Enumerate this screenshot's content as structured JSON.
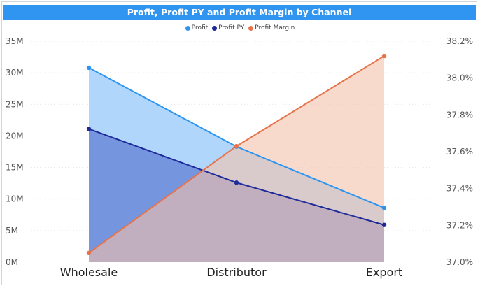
{
  "chart_data": {
    "type": "area",
    "title": "Profit, Profit PY and Profit Margin by Channel",
    "categories": [
      "Wholesale",
      "Distributor",
      "Export"
    ],
    "series": [
      {
        "name": "Profit",
        "axis": "left",
        "values": [
          30.8,
          18.3,
          8.6
        ],
        "color": "#2b95f0",
        "fill": "#a8d1fb"
      },
      {
        "name": "Profit PY",
        "axis": "left",
        "values": [
          21.1,
          12.6,
          5.9
        ],
        "color": "#1e2a9a",
        "fill": "#6b8ad9"
      },
      {
        "name": "Profit Margin",
        "axis": "right",
        "values": [
          37.05,
          37.63,
          38.12
        ],
        "color": "#e6734a",
        "fill": "#f4c1ab"
      }
    ],
    "left_axis": {
      "min": 0,
      "max": 35,
      "ticks": [
        "0M",
        "5M",
        "10M",
        "15M",
        "20M",
        "25M",
        "30M",
        "35M"
      ]
    },
    "right_axis": {
      "min": 37.0,
      "max": 38.2,
      "ticks": [
        "37.0%",
        "37.2%",
        "37.4%",
        "37.6%",
        "37.8%",
        "38.0%",
        "38.2%"
      ]
    },
    "grid": true,
    "legend_position": "top-center"
  }
}
